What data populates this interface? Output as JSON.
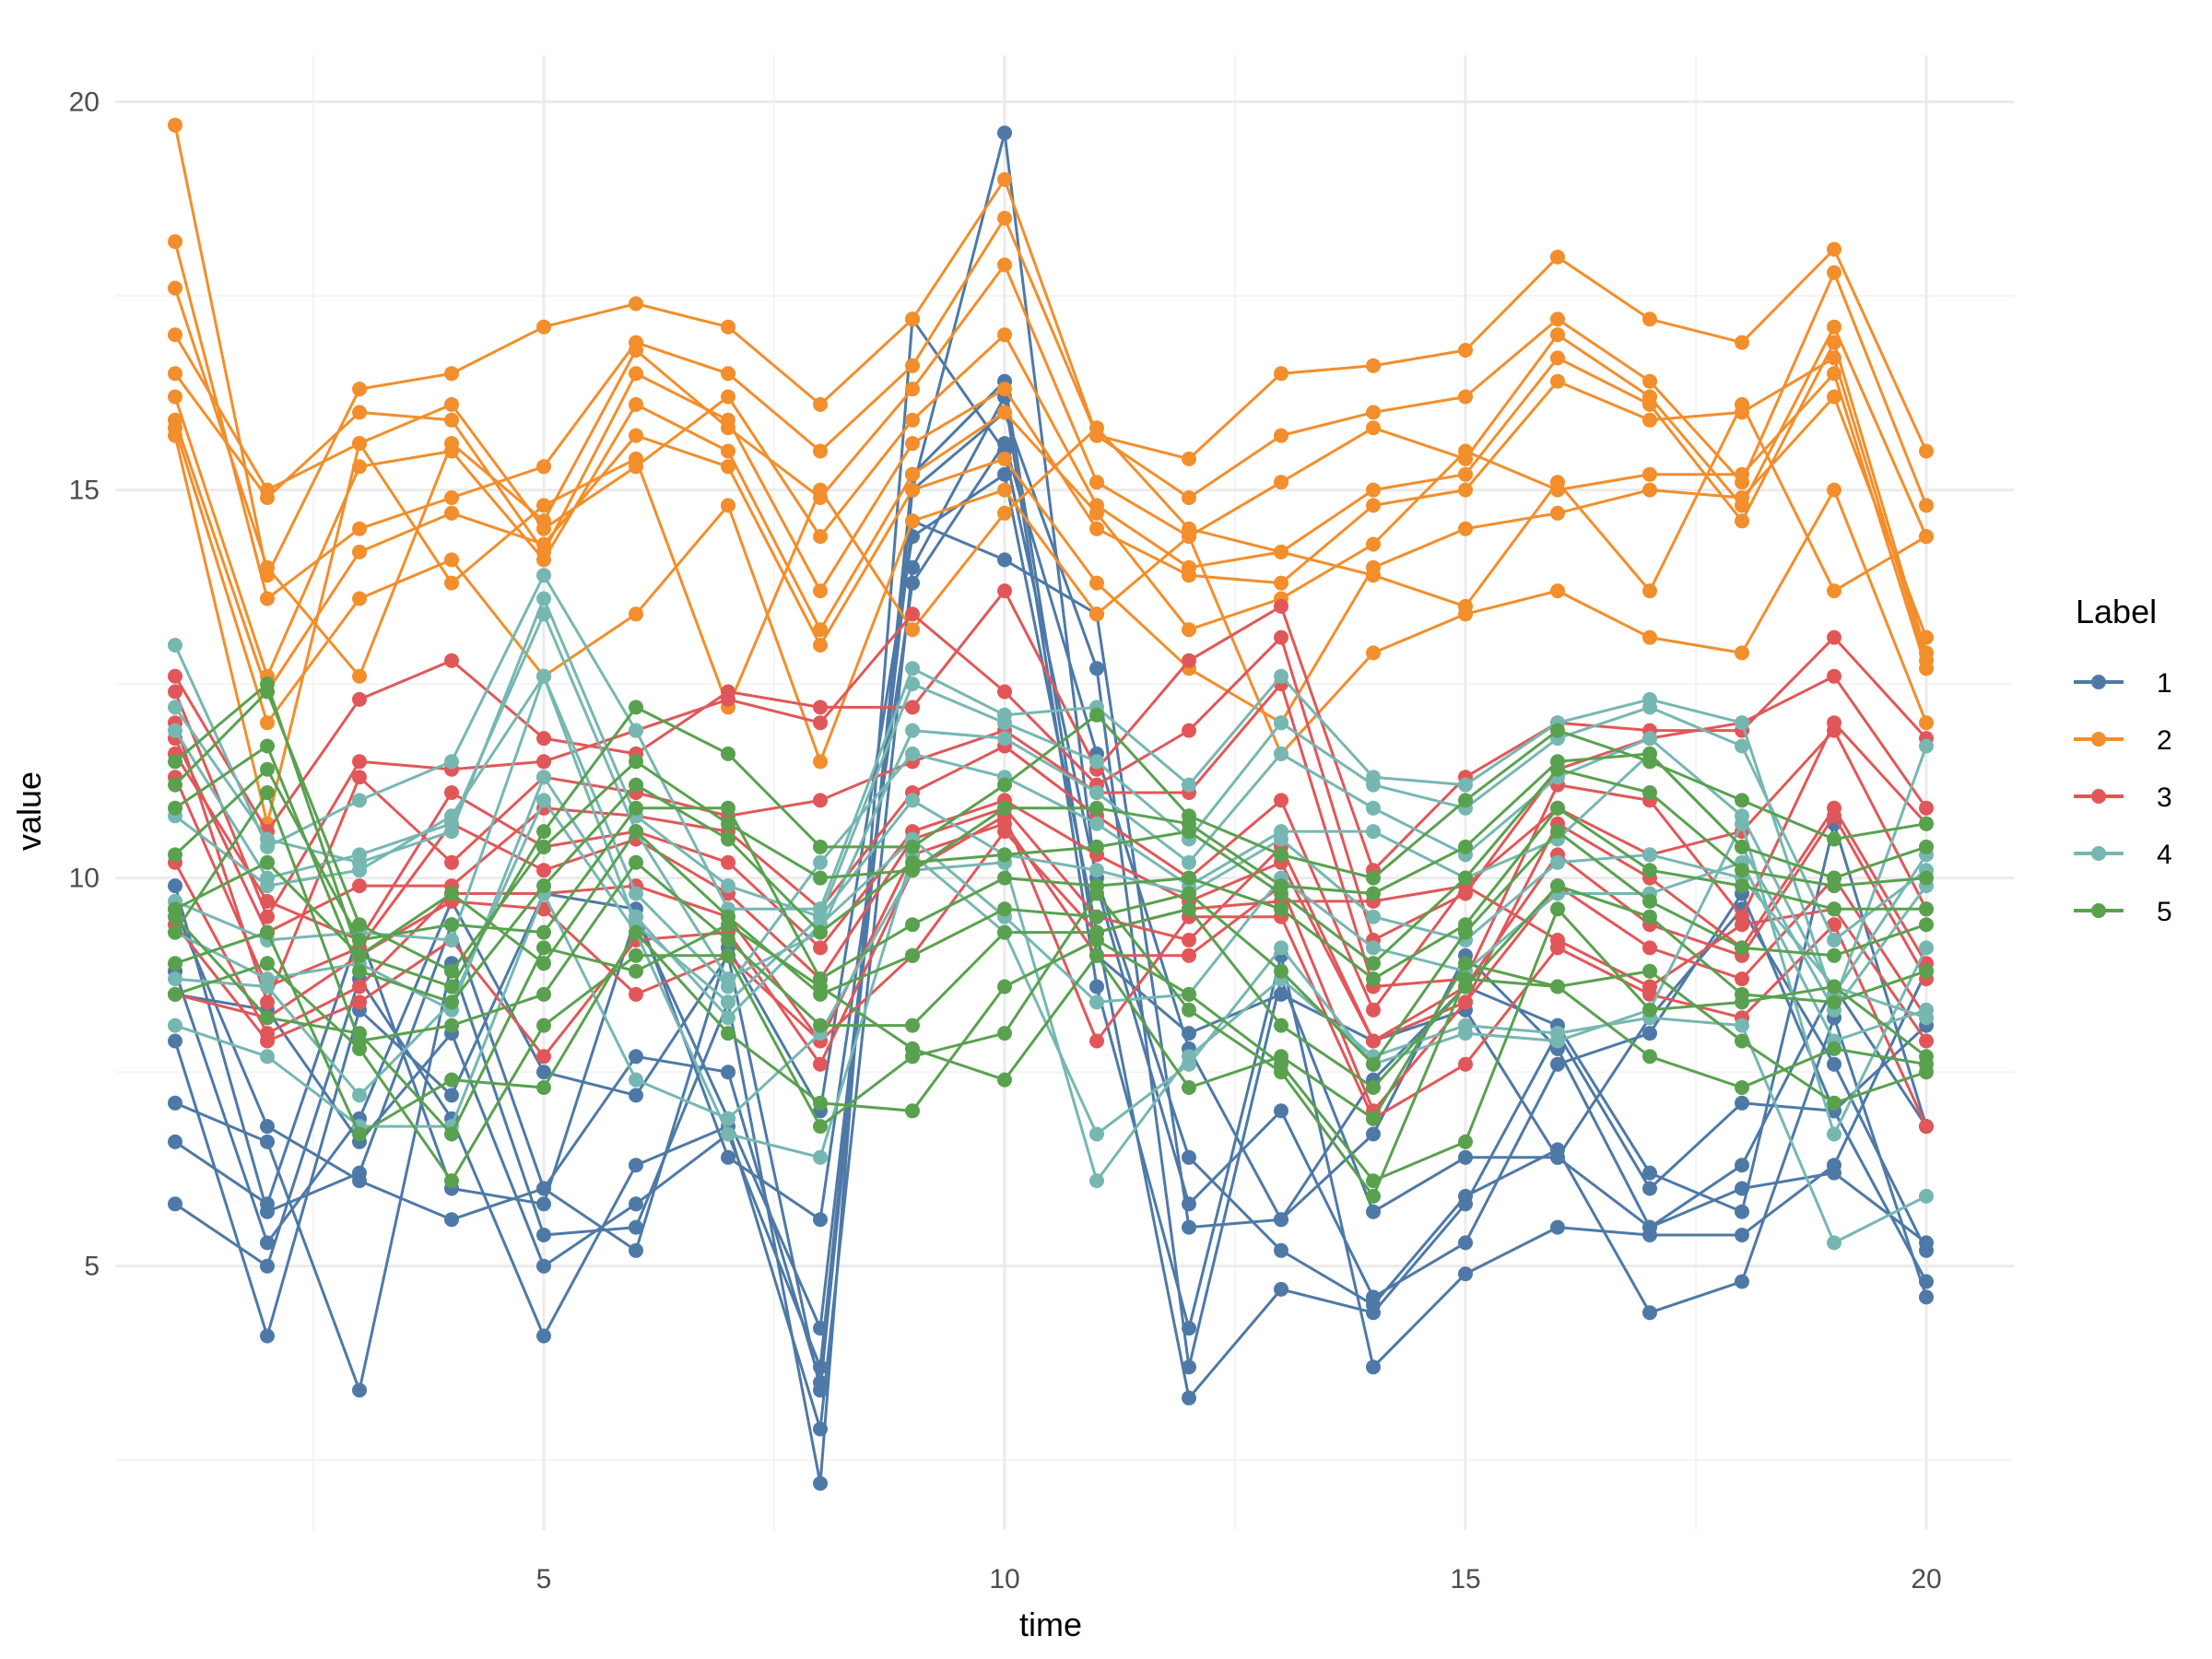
{
  "chart_data": {
    "type": "line",
    "title": "",
    "xlabel": "time",
    "ylabel": "value",
    "xlim": [
      0.35,
      20.95
    ],
    "ylim": [
      1.6,
      20.6
    ],
    "x_ticks": [
      5,
      10,
      15,
      20
    ],
    "x_tick_labels": [
      "5",
      "10",
      "15",
      "20"
    ],
    "y_ticks": [
      5,
      10,
      15,
      20
    ],
    "y_tick_labels": [
      "5",
      "10",
      "15",
      "20"
    ],
    "grid": true,
    "markers": true,
    "legend": {
      "title": "Label",
      "position": "right"
    },
    "x": [
      1,
      2,
      3,
      4,
      5,
      6,
      7,
      8,
      9,
      10,
      11,
      12,
      13,
      14,
      15,
      16,
      17,
      18,
      19,
      20
    ],
    "groups": [
      {
        "label": "1",
        "color": "#4e79a7",
        "series": [
          [
            9.9,
            5.7,
            6.2,
            9.4,
            6.0,
            7.7,
            7.5,
            3.5,
            15.0,
            19.6,
            9.9,
            5.8,
            7.0,
            4.6,
            5.3,
            7.6,
            8.0,
            9.8,
            7.0,
            4.8
          ],
          [
            8.8,
            5.3,
            6.9,
            9.7,
            7.5,
            7.2,
            9.0,
            3.4,
            15.2,
            16.4,
            9.0,
            8.0,
            8.5,
            7.9,
            8.3,
            6.4,
            8.2,
            9.6,
            7.6,
            5.2
          ],
          [
            7.9,
            4.1,
            8.3,
            7.2,
            9.8,
            9.6,
            6.4,
            5.6,
            13.8,
            15.6,
            11.6,
            7.8,
            5.6,
            7.4,
            8.6,
            8.1,
            6.2,
            5.7,
            10.7,
            6.8
          ],
          [
            7.1,
            6.6,
            3.4,
            8.9,
            5.4,
            5.5,
            8.4,
            2.2,
            17.2,
            15.5,
            10.0,
            6.4,
            5.2,
            4.5,
            5.9,
            6.5,
            4.4,
            4.8,
            8.2,
            4.6
          ],
          [
            6.6,
            5.8,
            9.3,
            6.0,
            5.8,
            9.5,
            6.9,
            4.2,
            14.6,
            14.1,
            13.4,
            5.5,
            5.6,
            6.7,
            9.0,
            7.8,
            5.5,
            6.3,
            8.6,
            6.8
          ],
          [
            9.6,
            6.8,
            6.1,
            5.6,
            6.0,
            5.2,
            9.1,
            7.0,
            14.4,
            15.2,
            9.3,
            3.3,
            4.7,
            4.4,
            5.8,
            8.0,
            6.0,
            7.1,
            7.0,
            8.1
          ],
          [
            5.8,
            5.0,
            8.7,
            6.9,
            4.1,
            6.3,
            6.8,
            2.9,
            14.0,
            16.2,
            8.6,
            4.2,
            9.0,
            3.7,
            4.9,
            5.5,
            5.4,
            5.4,
            6.3,
            8.8
          ],
          [
            8.5,
            8.3,
            6.6,
            8.0,
            5.0,
            5.8,
            6.7,
            3.7,
            15.0,
            16.0,
            12.7,
            3.7,
            8.7,
            5.7,
            6.4,
            6.4,
            5.5,
            6.0,
            6.2,
            5.3
          ]
        ]
      },
      {
        "label": "2",
        "color": "#f28e2b",
        "series": [
          [
            19.7,
            13.9,
            16.3,
            16.5,
            17.1,
            17.4,
            17.1,
            16.1,
            17.2,
            19.0,
            15.7,
            15.4,
            16.5,
            16.6,
            16.8,
            18.0,
            17.2,
            16.9,
            18.1,
            15.5
          ],
          [
            18.2,
            13.6,
            14.5,
            14.9,
            15.3,
            16.9,
            16.5,
            15.5,
            16.6,
            18.5,
            15.7,
            14.9,
            15.7,
            16.0,
            16.2,
            17.2,
            16.4,
            15.1,
            17.8,
            14.8
          ],
          [
            17.6,
            14.0,
            12.6,
            15.6,
            14.6,
            16.8,
            15.8,
            14.9,
            16.3,
            17.9,
            15.1,
            14.4,
            15.1,
            15.8,
            15.4,
            17.0,
            16.2,
            14.8,
            17.1,
            14.4
          ],
          [
            17.0,
            15.0,
            15.6,
            16.1,
            14.5,
            15.3,
            16.2,
            14.4,
            15.9,
            17.0,
            14.8,
            14.0,
            14.2,
            15.0,
            15.2,
            16.7,
            16.1,
            14.6,
            16.9,
            12.9
          ],
          [
            16.5,
            14.9,
            16.0,
            15.9,
            14.2,
            16.5,
            15.9,
            13.7,
            15.6,
            16.3,
            14.5,
            13.9,
            13.8,
            14.8,
            15.0,
            16.4,
            15.9,
            16.0,
            16.7,
            12.8
          ],
          [
            16.2,
            12.6,
            15.3,
            15.5,
            14.1,
            16.1,
            15.5,
            13.2,
            15.2,
            16.0,
            14.7,
            13.2,
            13.6,
            14.3,
            15.5,
            15.0,
            15.2,
            15.2,
            16.5,
            12.7
          ],
          [
            15.9,
            12.4,
            14.2,
            14.7,
            14.3,
            15.7,
            15.3,
            13.0,
            15.0,
            15.4,
            13.8,
            12.7,
            12.0,
            14.0,
            14.5,
            14.7,
            15.0,
            14.9,
            16.2,
            13.1
          ],
          [
            15.8,
            12.0,
            13.6,
            14.1,
            12.6,
            13.4,
            14.8,
            11.5,
            14.6,
            15.0,
            13.4,
            14.4,
            11.6,
            12.9,
            13.4,
            13.7,
            13.1,
            12.9,
            15.0,
            12.0
          ],
          [
            15.7,
            10.7,
            15.6,
            13.8,
            14.8,
            15.4,
            12.2,
            15.0,
            13.2,
            14.7,
            15.8,
            14.5,
            14.2,
            13.9,
            13.5,
            15.1,
            13.7,
            16.1,
            13.7,
            14.4
          ]
        ]
      },
      {
        "label": "3",
        "color": "#e15759",
        "series": [
          [
            12.6,
            10.6,
            12.3,
            12.8,
            11.8,
            11.6,
            12.4,
            12.2,
            12.2,
            13.7,
            11.4,
            12.8,
            13.5,
            10.1,
            11.3,
            12.0,
            11.9,
            11.9,
            13.1,
            11.8
          ],
          [
            12.4,
            9.5,
            11.5,
            11.4,
            11.5,
            11.9,
            12.3,
            12.0,
            13.4,
            12.4,
            11.2,
            11.9,
            13.1,
            9.2,
            9.8,
            11.4,
            11.8,
            12.0,
            12.6,
            10.9
          ],
          [
            12.0,
            8.4,
            11.3,
            10.2,
            11.3,
            11.1,
            10.8,
            11.0,
            11.5,
            11.9,
            11.1,
            11.1,
            12.5,
            8.6,
            8.7,
            11.2,
            11.0,
            9.5,
            12.0,
            10.7
          ],
          [
            11.8,
            9.3,
            9.9,
            9.9,
            10.9,
            10.8,
            10.6,
            9.6,
            11.1,
            11.7,
            10.8,
            10.0,
            11.0,
            8.3,
            9.9,
            10.9,
            10.3,
            10.6,
            11.9,
            9.6
          ],
          [
            11.6,
            9.7,
            9.2,
            11.1,
            10.4,
            10.6,
            10.2,
            9.1,
            10.6,
            11.0,
            10.3,
            9.7,
            10.2,
            7.9,
            8.4,
            10.7,
            10.0,
            9.1,
            10.9,
            8.9
          ],
          [
            11.3,
            8.6,
            9.1,
            10.7,
            10.1,
            10.5,
            9.8,
            8.7,
            10.5,
            10.9,
            9.5,
            9.2,
            10.4,
            7.9,
            8.6,
            10.3,
            9.4,
            9.0,
            10.8,
            8.7
          ],
          [
            10.2,
            8.0,
            8.6,
            9.8,
            9.8,
            9.9,
            9.5,
            7.9,
            10.3,
            10.7,
            9.0,
            9.0,
            9.9,
            7.0,
            8.4,
            9.9,
            9.1,
            8.7,
            10.0,
            8.2
          ],
          [
            9.4,
            7.9,
            8.4,
            9.2,
            7.7,
            9.2,
            9.3,
            7.6,
            10.1,
            10.8,
            7.9,
            9.5,
            9.5,
            6.9,
            7.6,
            9.1,
            8.5,
            8.2,
            9.4,
            6.8
          ],
          [
            8.5,
            8.2,
            9.0,
            9.7,
            9.6,
            8.5,
            9.0,
            7.9,
            9.0,
            10.6,
            9.3,
            9.6,
            9.7,
            9.7,
            9.9,
            9.2,
            8.6,
            9.4,
            9.6,
            7.9
          ]
        ]
      },
      {
        "label": "4",
        "color": "#76b7b2",
        "series": [
          [
            13.0,
            10.4,
            11.0,
            11.5,
            13.9,
            11.9,
            9.6,
            9.6,
            12.7,
            12.1,
            12.2,
            11.2,
            12.6,
            11.3,
            11.2,
            12.0,
            12.3,
            12.0,
            8.4,
            11.7
          ],
          [
            12.2,
            10.5,
            10.2,
            10.6,
            13.6,
            10.8,
            9.9,
            9.5,
            12.5,
            12.0,
            11.5,
            10.5,
            12.0,
            11.2,
            10.9,
            11.8,
            12.2,
            11.7,
            9.2,
            10.1
          ],
          [
            11.9,
            10.0,
            10.3,
            10.7,
            13.4,
            10.6,
            8.7,
            9.3,
            11.9,
            11.8,
            11.1,
            10.2,
            11.6,
            10.9,
            10.3,
            11.3,
            11.8,
            10.8,
            8.5,
            10.3
          ],
          [
            10.8,
            9.9,
            10.1,
            10.8,
            12.6,
            9.8,
            8.6,
            10.2,
            11.6,
            11.3,
            10.7,
            9.9,
            10.6,
            10.6,
            10.0,
            10.5,
            11.6,
            10.4,
            8.3,
            9.9
          ],
          [
            9.7,
            9.2,
            9.3,
            9.2,
            12.6,
            9.4,
            8.4,
            9.5,
            11.0,
            10.3,
            10.1,
            9.8,
            10.5,
            9.5,
            9.2,
            10.2,
            10.3,
            10.0,
            8.6,
            8.2
          ],
          [
            9.3,
            8.7,
            8.9,
            8.3,
            11.3,
            9.5,
            8.2,
            9.4,
            10.5,
            9.5,
            8.4,
            8.5,
            10.0,
            9.1,
            8.8,
            9.8,
            9.8,
            10.2,
            7.9,
            8.3
          ],
          [
            8.7,
            8.6,
            7.2,
            8.4,
            11.0,
            9.3,
            6.7,
            6.4,
            10.3,
            9.3,
            6.7,
            7.6,
            9.1,
            7.6,
            8.0,
            7.9,
            8.3,
            10.7,
            6.7,
            9.1
          ],
          [
            8.1,
            7.7,
            6.8,
            6.8,
            9.8,
            7.4,
            6.9,
            8.0,
            10.1,
            10.2,
            6.1,
            7.7,
            8.7,
            7.7,
            8.1,
            8.0,
            8.2,
            8.1,
            5.3,
            5.9
          ]
        ]
      },
      {
        "label": "5",
        "color": "#59a14f",
        "series": [
          [
            11.5,
            12.5,
            9.0,
            8.6,
            10.6,
            12.2,
            11.6,
            10.4,
            10.4,
            11.2,
            12.1,
            10.8,
            10.3,
            10.0,
            11.0,
            11.9,
            11.5,
            11.0,
            10.5,
            10.7
          ],
          [
            11.2,
            12.4,
            9.4,
            8.8,
            10.4,
            11.5,
            10.7,
            10.0,
            10.1,
            10.9,
            10.9,
            10.7,
            9.9,
            9.8,
            10.4,
            11.5,
            11.6,
            10.4,
            10.0,
            10.4
          ],
          [
            10.9,
            11.7,
            8.8,
            8.4,
            9.9,
            11.2,
            10.5,
            9.3,
            10.2,
            10.3,
            10.4,
            10.6,
            9.8,
            8.9,
            10.0,
            11.4,
            11.1,
            10.1,
            9.9,
            10.0
          ],
          [
            10.3,
            11.4,
            9.2,
            9.4,
            9.3,
            10.9,
            10.9,
            8.7,
            9.4,
            10.0,
            9.9,
            10.0,
            9.6,
            8.7,
            9.4,
            10.9,
            10.1,
            9.9,
            9.6,
            9.6
          ],
          [
            9.6,
            10.2,
            9.0,
            9.8,
            8.9,
            10.6,
            9.5,
            8.5,
            9.0,
            9.6,
            9.5,
            9.8,
            8.8,
            7.6,
            9.3,
            10.6,
            9.7,
            9.1,
            9.0,
            9.4
          ],
          [
            9.3,
            11.1,
            7.9,
            8.1,
            8.5,
            10.2,
            9.2,
            8.1,
            8.1,
            9.3,
            9.3,
            9.6,
            8.1,
            7.3,
            8.6,
            9.9,
            9.5,
            8.5,
            8.4,
            8.8
          ],
          [
            8.9,
            9.3,
            6.7,
            7.4,
            7.3,
            9.3,
            8.0,
            7.1,
            7.0,
            8.6,
            9.2,
            8.5,
            7.6,
            6.1,
            6.6,
            9.6,
            8.3,
            8.4,
            8.6,
            7.7
          ],
          [
            8.5,
            8.9,
            7.8,
            6.1,
            8.1,
            9.0,
            9.0,
            6.8,
            7.7,
            8.0,
            9.8,
            8.3,
            7.5,
            5.9,
            8.7,
            8.6,
            7.7,
            7.3,
            7.8,
            7.6
          ],
          [
            9.5,
            8.2,
            8.0,
            6.7,
            9.1,
            8.8,
            9.4,
            8.6,
            7.8,
            7.4,
            9.0,
            7.3,
            7.7,
            6.9,
            8.9,
            8.6,
            8.8,
            7.9,
            7.1,
            7.5
          ]
        ]
      }
    ]
  }
}
